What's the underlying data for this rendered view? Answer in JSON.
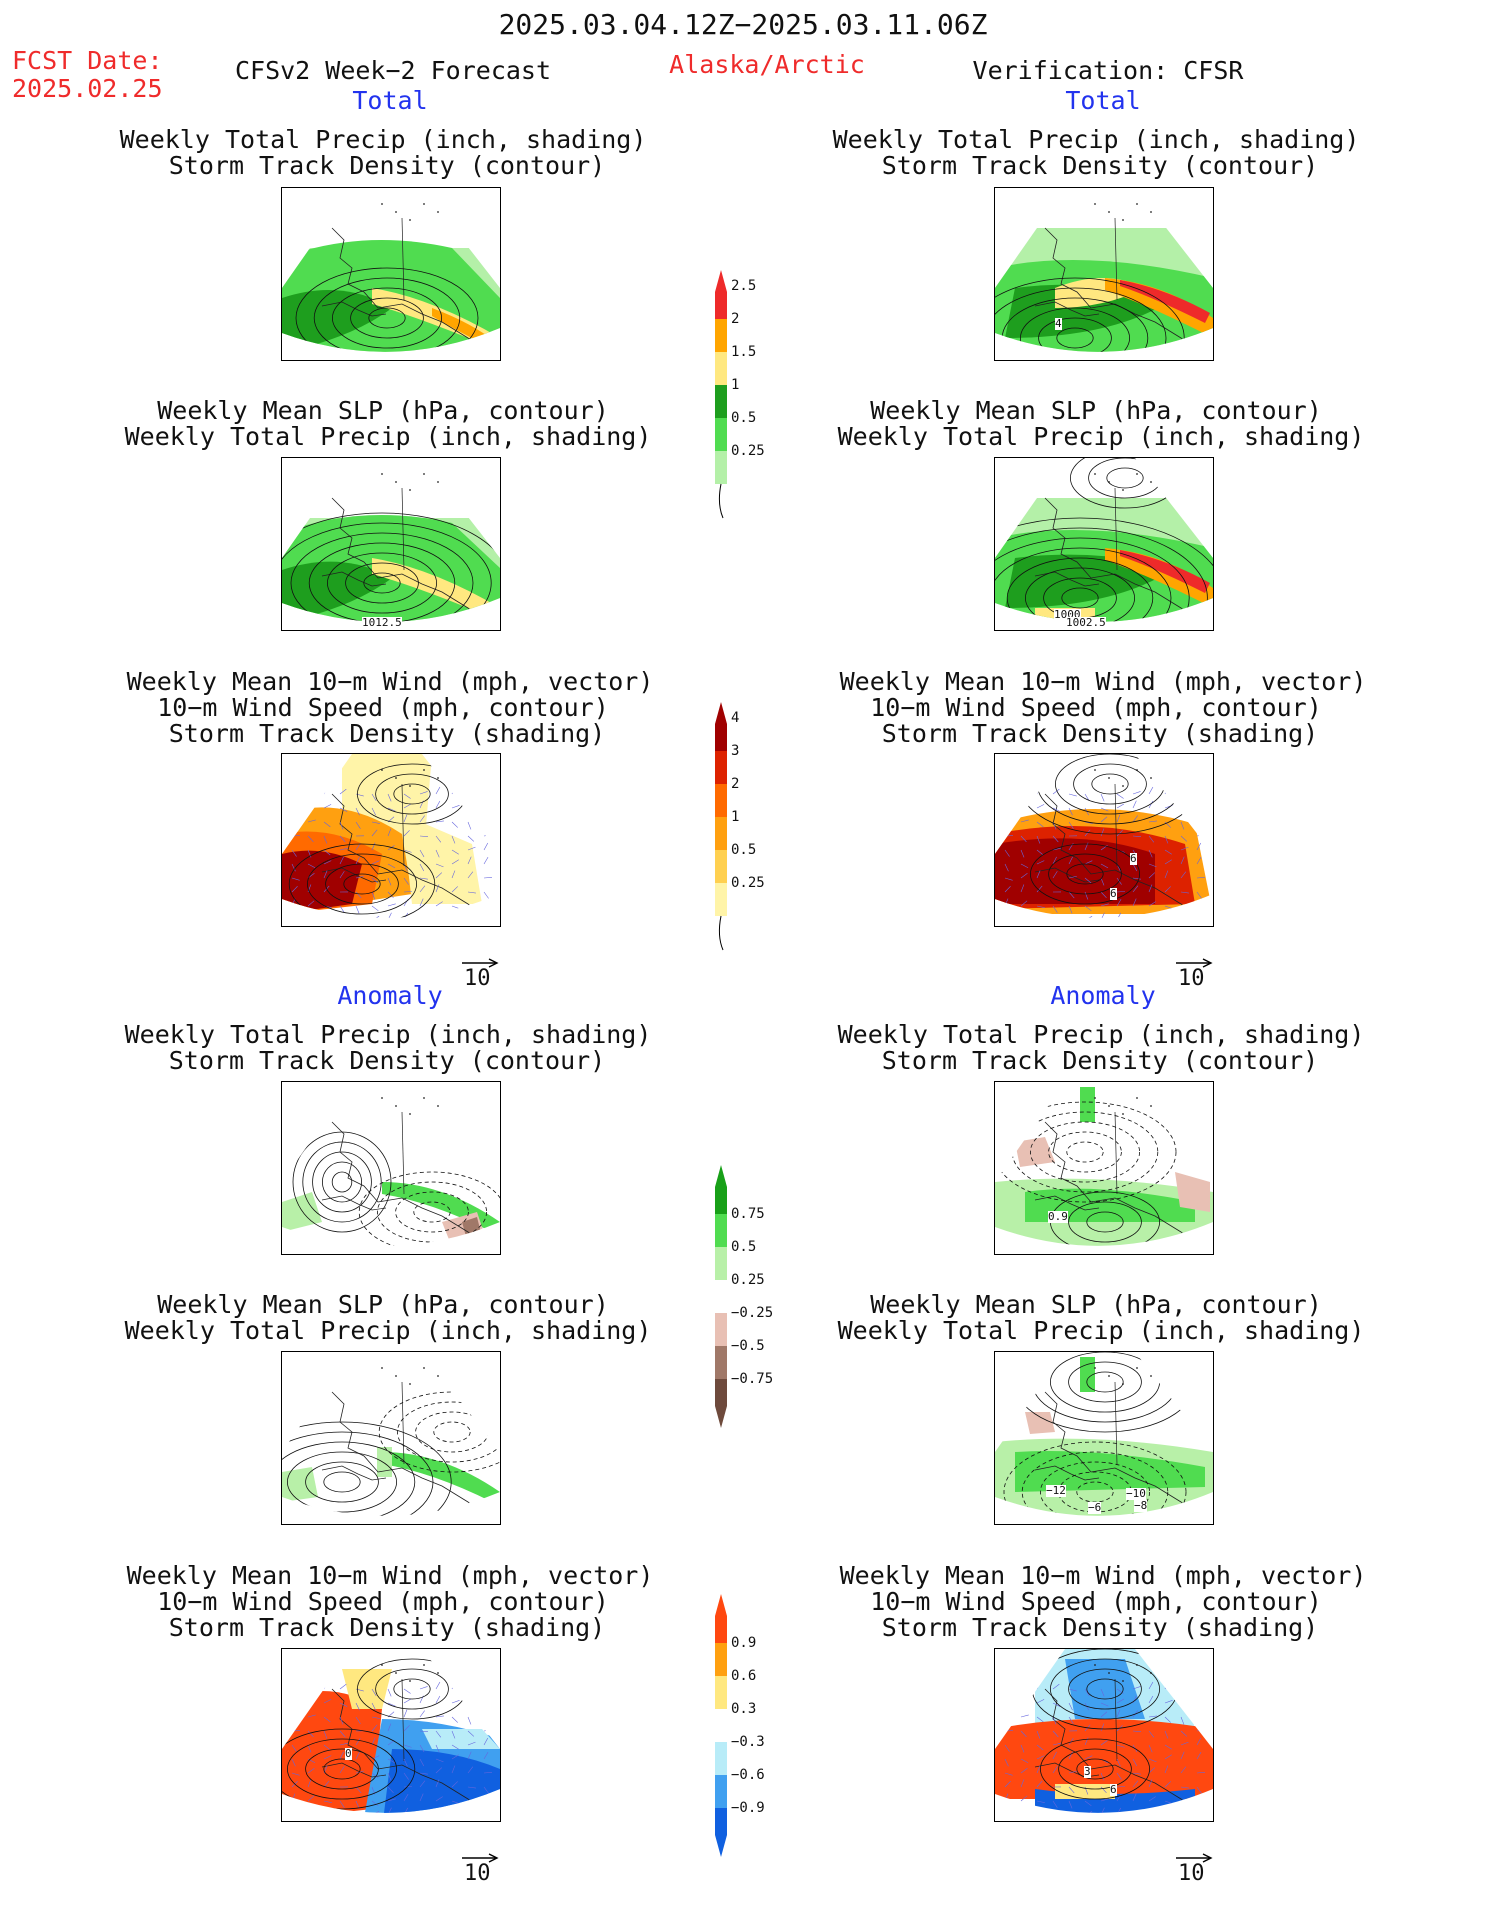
{
  "header": {
    "date_range": "2025.03.04.12Z−2025.03.11.06Z",
    "fcst_label": "FCST Date:",
    "fcst_date": "2025.02.25",
    "model": "CFSv2 Week−2 Forecast",
    "region": "Alaska/Arctic",
    "verification": "Verification: CFSR"
  },
  "sections": {
    "total": "Total",
    "anomaly": "Anomaly"
  },
  "titles": {
    "precip_storm": [
      "Weekly Total Precip (inch, shading)",
      "Storm Track Density (contour)"
    ],
    "slp_precip": [
      "Weekly Mean SLP (hPa, contour)",
      "Weekly Total Precip (inch, shading)"
    ],
    "wind": [
      "Weekly Mean 10−m Wind (mph, vector)",
      "10−m Wind Speed (mph, contour)",
      "Storm Track Density (shading)"
    ]
  },
  "vector_ref": "10",
  "contour_labels": {
    "fc_slp_total": "1012.5",
    "ver_slp_total_a": "1000",
    "ver_slp_total_b": "1002.5",
    "ver_precip_total": "4",
    "ver_wind_total_a": "6",
    "ver_wind_total_b": "6",
    "ver_precip_anom": "0.9",
    "ver_slp_anom_a": "−12",
    "ver_slp_anom_b": "−6",
    "ver_slp_anom_c": "−8",
    "ver_slp_anom_d": "−10",
    "fc_wind_anom": "0",
    "ver_wind_anom_a": "3",
    "ver_wind_anom_b": "6"
  },
  "colors": {
    "precip": [
      "#b4f0a8",
      "#50dc50",
      "#1e9e1e",
      "#ffe880",
      "#ffa500",
      "#ee2a2a"
    ],
    "storm": [
      "#fff4a8",
      "#ffd050",
      "#ffa010",
      "#ff6a00",
      "#dd2200",
      "#a00000"
    ],
    "precip_anom": [
      "#6e4a3c",
      "#a07868",
      "#e8c0b4",
      "#ffffff",
      "#b8f0a8",
      "#50dc50",
      "#18a018"
    ],
    "storm_anom": [
      "#1060e0",
      "#40a0f0",
      "#b8ecf8",
      "#ffffff",
      "#ffe880",
      "#ffa010",
      "#ff4810"
    ]
  },
  "chart_data": [
    {
      "type": "heatmap",
      "colorbar": "precip",
      "levels": [
        "0.25",
        "0.5",
        "1",
        "1.5",
        "2",
        "2.5"
      ],
      "colors": [
        "#b4f0a8",
        "#50dc50",
        "#1e9e1e",
        "#ffe880",
        "#ffa500",
        "#ee2a2a"
      ]
    },
    {
      "type": "heatmap",
      "colorbar": "storm_density",
      "levels": [
        "0.25",
        "0.5",
        "1",
        "2",
        "3",
        "4"
      ],
      "colors": [
        "#fff4a8",
        "#ffd050",
        "#ffa010",
        "#ff6a00",
        "#dd2200",
        "#a00000"
      ]
    },
    {
      "type": "heatmap",
      "colorbar": "precip_anomaly",
      "levels": [
        "−0.75",
        "−0.5",
        "−0.25",
        "0.25",
        "0.5",
        "0.75"
      ],
      "colors": [
        "#6e4a3c",
        "#a07868",
        "#e8c0b4",
        "#ffffff",
        "#b8f0a8",
        "#50dc50",
        "#18a018"
      ]
    },
    {
      "type": "heatmap",
      "colorbar": "storm_density_anomaly",
      "levels": [
        "−0.9",
        "−0.6",
        "−0.3",
        "0.3",
        "0.6",
        "0.9"
      ],
      "colors": [
        "#1060e0",
        "#40a0f0",
        "#b8ecf8",
        "#ffffff",
        "#ffe880",
        "#ffa010",
        "#ff4810"
      ]
    }
  ]
}
